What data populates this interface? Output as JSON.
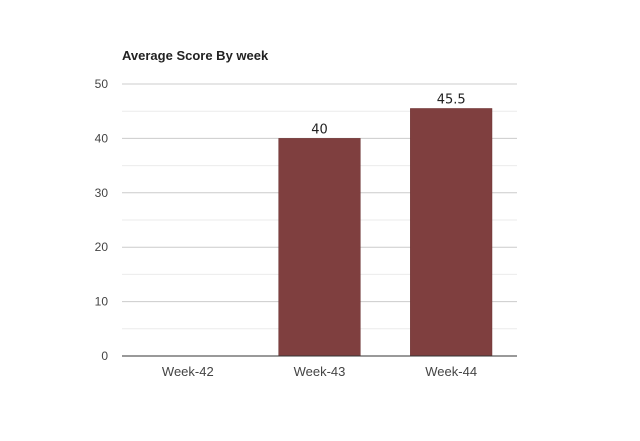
{
  "chart_data": {
    "type": "bar",
    "title": "Average Score By week",
    "categories": [
      "Week-42",
      "Week-43",
      "Week-44"
    ],
    "values": [
      0,
      40,
      45.5
    ],
    "data_labels": [
      "",
      "40",
      "45.5"
    ],
    "ylim": [
      0,
      50
    ],
    "yticks": [
      0,
      10,
      20,
      30,
      40,
      50
    ],
    "ytick_labels": [
      "0",
      "10",
      "20",
      "30",
      "40",
      "50"
    ],
    "xlabel": "",
    "ylabel": "",
    "bar_color": "#7f3f3f",
    "grid": true
  }
}
